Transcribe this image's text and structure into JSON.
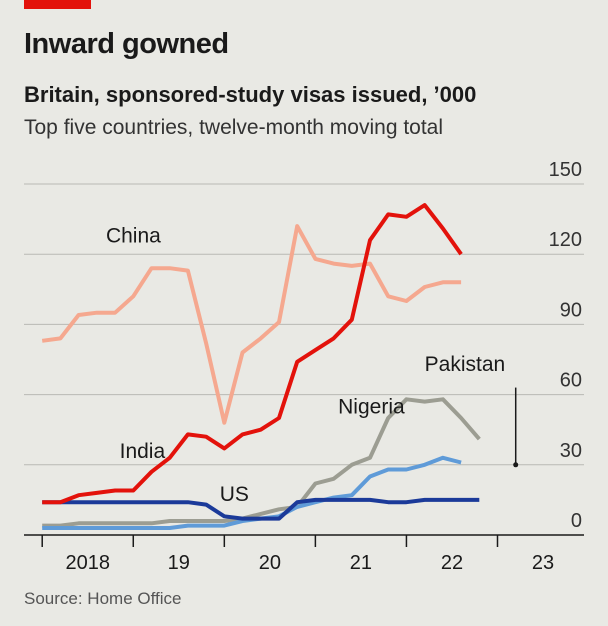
{
  "header": {
    "title": "Inward gowned",
    "subtitle": "Britain, sponsored-study visas issued, ’000",
    "subtitle2": "Top five countries, twelve-month moving total"
  },
  "source": "Source: Home Office",
  "colors": {
    "background": "#e9e9e4",
    "accent": "#e3120b",
    "grid": "#b9b9b4",
    "axis": "#1a1a1a"
  },
  "chart_data": {
    "type": "line",
    "title": "Inward gowned",
    "xlabel": "",
    "ylabel": "",
    "y_axis_side": "right",
    "ylim": [
      0,
      150
    ],
    "yticks": [
      0,
      30,
      60,
      90,
      120,
      150
    ],
    "xlim": [
      2017.8,
      2023.95
    ],
    "x_tick_labels": [
      {
        "label": "2018",
        "x": 2018.5
      },
      {
        "label": "19",
        "x": 2019.5
      },
      {
        "label": "20",
        "x": 2020.5
      },
      {
        "label": "21",
        "x": 2021.5
      },
      {
        "label": "22",
        "x": 2022.5
      },
      {
        "label": "23",
        "x": 2023.5
      }
    ],
    "x_year_boundaries": [
      2018,
      2019,
      2020,
      2021,
      2022,
      2023
    ],
    "grid": true,
    "legend": "direct labels",
    "x": [
      2018.0,
      2018.2,
      2018.4,
      2018.6,
      2018.8,
      2019.0,
      2019.2,
      2019.4,
      2019.6,
      2019.8,
      2020.0,
      2020.2,
      2020.4,
      2020.6,
      2020.8,
      2021.0,
      2021.2,
      2021.4,
      2021.6,
      2021.8,
      2022.0,
      2022.2,
      2022.4,
      2022.6,
      2022.8,
      2023.0,
      2023.2,
      2023.4
    ],
    "series": [
      {
        "name": "China",
        "color": "#f5a88f",
        "values": [
          83,
          84,
          94,
          95,
          95,
          102,
          114,
          114,
          113,
          82,
          48,
          78,
          84,
          91,
          132,
          118,
          116,
          115,
          116,
          102,
          100,
          106,
          108,
          108,
          null,
          null,
          null,
          null
        ]
      },
      {
        "name": "India",
        "color": "#e3120b",
        "values": [
          14,
          14,
          17,
          18,
          19,
          19,
          27,
          33,
          43,
          42,
          37,
          43,
          45,
          50,
          74,
          79,
          84,
          92,
          126,
          137,
          136,
          141,
          131,
          120,
          null,
          null,
          null,
          null
        ]
      },
      {
        "name": "Nigeria",
        "color": "#9c9d92",
        "values": [
          4,
          4,
          5,
          5,
          5,
          5,
          5,
          6,
          6,
          6,
          6,
          7,
          9,
          11,
          12,
          22,
          24,
          30,
          33,
          50,
          58,
          57,
          58,
          50,
          41,
          null,
          null,
          null
        ]
      },
      {
        "name": "Pakistan",
        "color": "#5f9bd8",
        "values": [
          3,
          3,
          3,
          3,
          3,
          3,
          3,
          3,
          4,
          4,
          4,
          6,
          7,
          8,
          12,
          14,
          16,
          17,
          25,
          28,
          28,
          30,
          33,
          31,
          null,
          null,
          null,
          null
        ]
      },
      {
        "name": "US",
        "color": "#1b3a99",
        "values": [
          14,
          14,
          14,
          14,
          14,
          14,
          14,
          14,
          14,
          13,
          8,
          7,
          7,
          7,
          14,
          15,
          15,
          15,
          15,
          14,
          14,
          15,
          15,
          15,
          15,
          null,
          null,
          null
        ]
      }
    ],
    "annotations": [
      {
        "text": "China",
        "series": "China"
      },
      {
        "text": "India",
        "series": "India"
      },
      {
        "text": "Nigeria",
        "series": "Nigeria"
      },
      {
        "text": "Pakistan",
        "series": "Pakistan"
      },
      {
        "text": "US",
        "series": "US"
      }
    ]
  }
}
